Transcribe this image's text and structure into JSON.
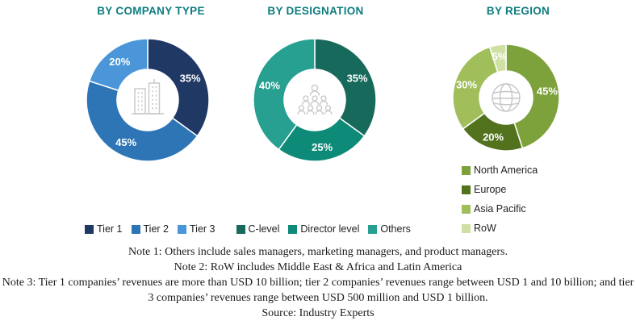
{
  "colors": {
    "title_teal": "#0e7d7f",
    "slice_label": "#ffffff",
    "note_text": "#1a1a1a"
  },
  "chart_data": [
    {
      "type": "pie",
      "donut": true,
      "title": "BY COMPANY TYPE",
      "icon": "buildings-icon",
      "legend_position": "bottom",
      "slices": [
        {
          "label": "Tier 1",
          "value": 35,
          "display": "35%",
          "color": "#1f3864"
        },
        {
          "label": "Tier 2",
          "value": 45,
          "display": "45%",
          "color": "#2e75b6"
        },
        {
          "label": "Tier 3",
          "value": 20,
          "display": "20%",
          "color": "#4a96d8"
        }
      ]
    },
    {
      "type": "pie",
      "donut": true,
      "title": "BY DESIGNATION",
      "icon": "org-chart-icon",
      "legend_position": "bottom",
      "slices": [
        {
          "label": "C-level",
          "value": 35,
          "display": "35%",
          "color": "#17695b"
        },
        {
          "label": "Director level",
          "value": 25,
          "display": "25%",
          "color": "#0d8a78"
        },
        {
          "label": "Others",
          "value": 40,
          "display": "40%",
          "color": "#27a091"
        }
      ]
    },
    {
      "type": "pie",
      "donut": true,
      "title": "BY REGION",
      "icon": "globe-icon",
      "legend_position": "right-below",
      "slices": [
        {
          "label": "North America",
          "value": 45,
          "display": "45%",
          "color": "#7ea23b"
        },
        {
          "label": "Europe",
          "value": 20,
          "display": "20%",
          "color": "#53721e"
        },
        {
          "label": "Asia Pacific",
          "value": 30,
          "display": "30%",
          "color": "#a0be5a"
        },
        {
          "label": "RoW",
          "value": 5,
          "display": "5%",
          "color": "#cfe0a4"
        }
      ]
    }
  ],
  "notes": {
    "note1": "Note 1: Others include sales managers, marketing managers, and product managers.",
    "note2": "Note 2: RoW includes Middle East & Africa and Latin America",
    "note3": "Note 3: Tier 1 companies’ revenues are more than USD 10 billion; tier 2 companies’ revenues range between USD 1 and 10 billion; and tier 3 companies’ revenues range between USD 500 million and USD 1 billion.",
    "source": "Source: Industry Experts"
  }
}
